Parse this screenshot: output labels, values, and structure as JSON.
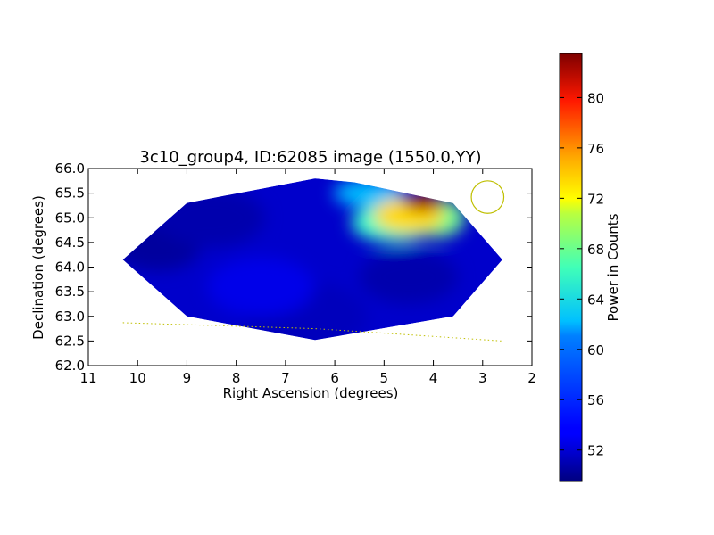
{
  "chart_data": {
    "type": "heatmap",
    "title": "3c10_group4, ID:62085 image (1550.0,YY)",
    "xlabel": "Right Ascension (degrees)",
    "ylabel": "Declination (degrees)",
    "xlim": [
      11,
      2
    ],
    "ylim": [
      62.0,
      66.0
    ],
    "x_ticks": [
      "11",
      "10",
      "9",
      "8",
      "7",
      "6",
      "5",
      "4",
      "3",
      "2"
    ],
    "y_ticks": [
      "62.0",
      "62.5",
      "63.0",
      "63.5",
      "64.0",
      "64.5",
      "65.0",
      "65.5",
      "66.0"
    ],
    "colorbar": {
      "label": "Power in Counts",
      "range": [
        49.5,
        83.5
      ],
      "ticks": [
        "52",
        "56",
        "60",
        "64",
        "68",
        "72",
        "76",
        "80"
      ]
    },
    "footprint_vertices": [
      [
        10.3,
        64.15
      ],
      [
        9.0,
        65.3
      ],
      [
        6.4,
        65.8
      ],
      [
        5.6,
        65.72
      ],
      [
        3.6,
        65.3
      ],
      [
        2.6,
        64.15
      ],
      [
        3.6,
        63.0
      ],
      [
        6.4,
        62.52
      ],
      [
        9.0,
        63.0
      ]
    ],
    "hotspots": [
      {
        "ra": 4.2,
        "dec": 65.3,
        "value": 82
      },
      {
        "ra": 4.5,
        "dec": 65.05,
        "value": 72
      },
      {
        "ra": 4.8,
        "dec": 64.9,
        "value": 64
      },
      {
        "ra": 3.9,
        "dec": 65.0,
        "value": 66
      },
      {
        "ra": 5.3,
        "dec": 65.5,
        "value": 60
      }
    ],
    "baseline_value": 52,
    "beam_circle": {
      "ra": 2.9,
      "dec": 65.42,
      "radius_deg": 0.33
    },
    "horizon_line": [
      [
        10.3,
        62.87
      ],
      [
        6.4,
        62.75
      ],
      [
        2.6,
        62.5
      ]
    ]
  },
  "colors": {
    "beam": "#bfbf00",
    "horizon": "#bfbf00"
  }
}
